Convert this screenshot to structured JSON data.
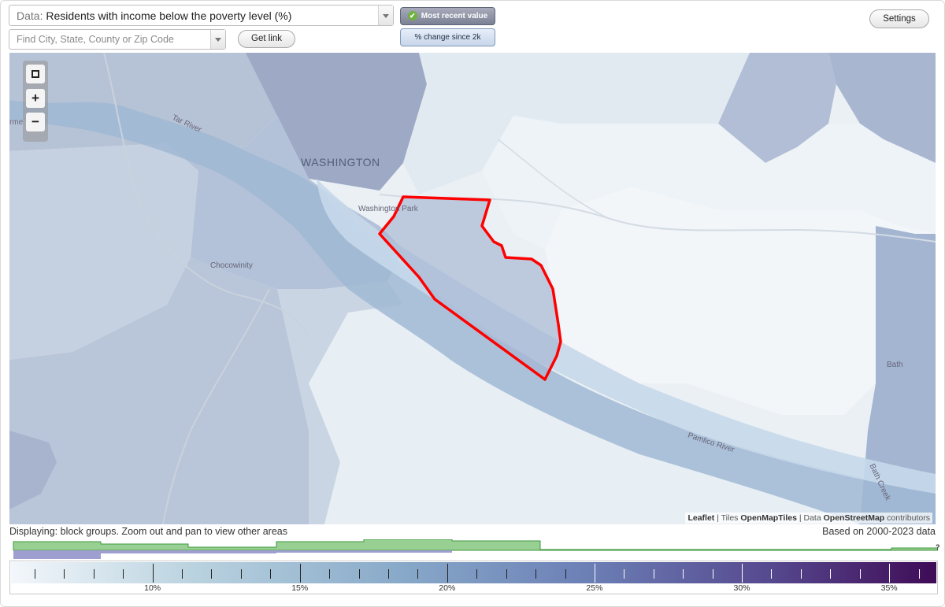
{
  "controls": {
    "data_prefix": "Data:",
    "data_value": "Residents with income below the poverty level (%)",
    "search_placeholder": "Find City, State, County or Zip Code",
    "get_link_label": "Get link",
    "settings_label": "Settings",
    "toggle_recent_label": "Most recent value",
    "toggle_change_label": "% change since 2k",
    "toggle_recent_icon": "check-icon"
  },
  "map": {
    "labels": {
      "washington": "WASHINGTON",
      "washington_park": "Washington Park",
      "chocowinity": "Chocowinity",
      "bath": "Bath",
      "pamlico_river": "Pamlico River",
      "tar_river": "Tar River",
      "bath_creek": "Bath Creek",
      "left_edge": "rme"
    },
    "zoom_icons": [
      "extent-icon",
      "zoom-in-icon",
      "zoom-out-icon"
    ],
    "attribution": {
      "leaflet": "Leaflet",
      "sep1": " | Tiles ",
      "tiles": "OpenMapTiles",
      "sep2": " | Data ",
      "data": "OpenStreetMap",
      "contributors": " contributors"
    },
    "highlight_color": "#ff0000"
  },
  "info": {
    "displaying": "Displaying: block groups. Zoom out and pan to view other areas",
    "based_on": "Based on 2000-2023 data"
  },
  "histogram": {
    "question_mark": "?"
  },
  "legend": {
    "labels": [
      "10%",
      "15%",
      "20%",
      "25%",
      "30%",
      "35%"
    ],
    "range_min": 5.2,
    "range_max": 36.6,
    "colors": [
      "#f3f7fb",
      "#b9d2df",
      "#88a9c9",
      "#6c80b6",
      "#56498f",
      "#3f0b56"
    ]
  }
}
